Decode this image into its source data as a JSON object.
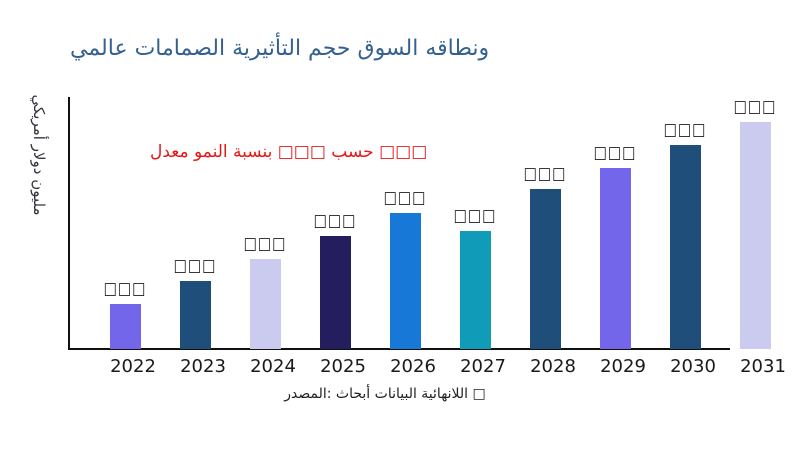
{
  "title": {
    "text": "ونطاقه السوق حجم التأثيرية الصمامات عالمي"
  },
  "ylabel": {
    "text": "مليون دولار أمريكي"
  },
  "growth_note": {
    "text": "□□□ حسب □□□ بنسبة النمو معدل"
  },
  "source": {
    "text": "□ اللانهائية البيانات أبحاث :المصدر"
  },
  "colors": {
    "title": "#34618F",
    "growth_note": "#E81717",
    "ylabel": "#33333d",
    "source": "#222222",
    "axis": "#111111"
  },
  "chart_data": {
    "type": "bar",
    "categories": [
      "2022",
      "2023",
      "2024",
      "2025",
      "2026",
      "2027",
      "2028",
      "2029",
      "2030",
      "2031"
    ],
    "values_pct_of_tallest": [
      19.8,
      30.0,
      39.6,
      49.8,
      59.9,
      52.0,
      70.5,
      79.7,
      89.9,
      100.0
    ],
    "bar_colors": [
      "#7366EB",
      "#204E7B",
      "#CACBEF",
      "#241E5F",
      "#1878D8",
      "#109BB8",
      "#204E7B",
      "#7366EB",
      "#204E7B",
      "#CACBEF"
    ],
    "value_labels": [
      "□□□",
      "□□□",
      "□□□",
      "□□□",
      "□□□",
      "□□□",
      "□□□",
      "□□□",
      "□□□",
      "□□□"
    ],
    "title": "ونطاقه السوق حجم التأثيرية الصمامات عالمي",
    "xlabel": "",
    "ylabel": "مليون دولار أمريكي",
    "y_axis_ticks": "none",
    "grid": "off",
    "legend": "none",
    "note": "Bar value labels and the growth-rate/year figures are rendered as missing-glyph placeholder boxes in the source image; no numeric axis ticks are shown."
  }
}
